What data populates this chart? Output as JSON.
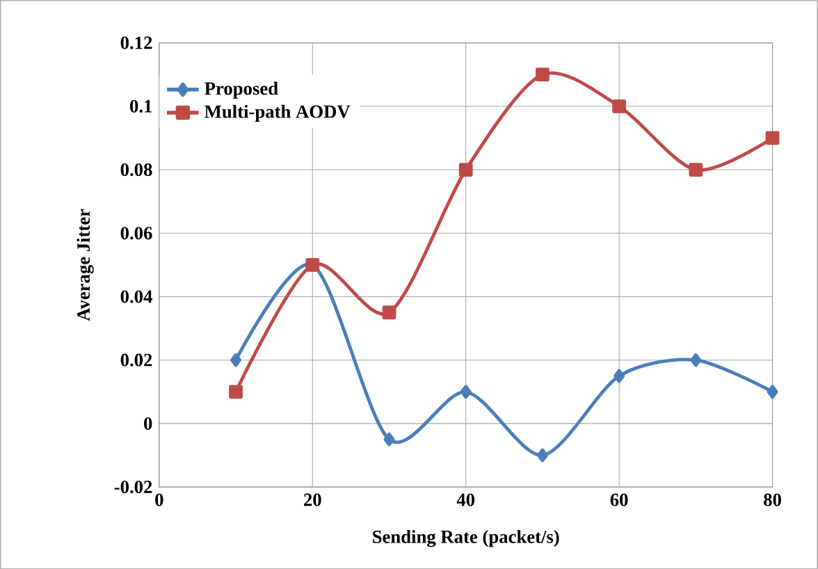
{
  "chart_data": {
    "type": "line",
    "xlabel": "Sending Rate (packet/s)",
    "ylabel": "Average Jitter",
    "x": [
      10,
      20,
      30,
      40,
      50,
      60,
      70,
      80
    ],
    "series": [
      {
        "name": "Proposed",
        "color": "#4a7ebb",
        "marker": "diamond",
        "values": [
          0.02,
          0.05,
          -0.005,
          0.01,
          -0.01,
          0.015,
          0.02,
          0.01
        ]
      },
      {
        "name": "Multi-path AODV",
        "color": "#be4b48",
        "marker": "square",
        "values": [
          0.01,
          0.05,
          0.035,
          0.08,
          0.11,
          0.1,
          0.08,
          0.09
        ]
      }
    ],
    "xlim": [
      0,
      80
    ],
    "ylim": [
      -0.02,
      0.12
    ],
    "xticks": [
      0,
      20,
      40,
      60,
      80
    ],
    "yticks": [
      {
        "value": -0.02,
        "label": "-0.02"
      },
      {
        "value": 0,
        "label": "0"
      },
      {
        "value": 0.02,
        "label": "0.02"
      },
      {
        "value": 0.04,
        "label": "0.04"
      },
      {
        "value": 0.06,
        "label": "0.06"
      },
      {
        "value": 0.08,
        "label": "0.08"
      },
      {
        "value": 0.1,
        "label": "0.1"
      },
      {
        "value": 0.12,
        "label": "0.12"
      }
    ],
    "grid": true,
    "legend": "top left",
    "line_style": "solid"
  }
}
